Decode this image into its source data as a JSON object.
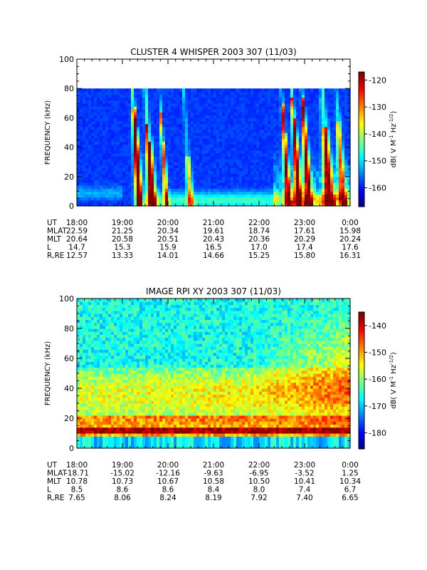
{
  "chart_data": [
    {
      "type": "heatmap",
      "title": "CLUSTER 4 WHISPER 2003 307 (11/03)",
      "ylabel": "FREQUENCY (kHz)",
      "ylim": [
        0,
        100
      ],
      "yticks": [
        "0",
        "20",
        "40",
        "60",
        "80",
        "100"
      ],
      "colorbar_label": "dB( V M",
      "colorbar_ticks": [
        "-120",
        "-130",
        "-140",
        "-150",
        "-160"
      ],
      "colorbar_range": [
        -167,
        -117
      ],
      "xtick_labels": [
        "18:00",
        "19:00",
        "20:00",
        "21:00",
        "22:00",
        "23:00",
        "0:00"
      ],
      "ephemeris": [
        {
          "label": "UT",
          "values": [
            "18:00",
            "19:00",
            "20:00",
            "21:00",
            "22:00",
            "23:00",
            "0:00"
          ]
        },
        {
          "label": "MLAT",
          "values": [
            "22.59",
            "21.25",
            "20.34",
            "19.61",
            "18.74",
            "17.61",
            "15.98"
          ]
        },
        {
          "label": "MLT",
          "values": [
            "20.64",
            "20.58",
            "20.51",
            "20.43",
            "20.36",
            "20.29",
            "20.24"
          ]
        },
        {
          "label": "L",
          "values": [
            "14.7",
            "15.3",
            "15.9",
            "16.5",
            "17.0",
            "17.4",
            "17.6"
          ]
        },
        {
          "label": "R,RE",
          "values": [
            "12.57",
            "13.33",
            "14.01",
            "14.66",
            "15.25",
            "15.80",
            "16.31"
          ]
        }
      ]
    },
    {
      "type": "heatmap",
      "title": "IMAGE RPI XY 2003 307 (11/03)",
      "ylabel": "FREQUENCY (kHz)",
      "ylim": [
        0,
        100
      ],
      "yticks": [
        "0",
        "20",
        "40",
        "60",
        "80",
        "100"
      ],
      "colorbar_label": "dB( V M",
      "colorbar_ticks": [
        "-140",
        "-150",
        "-160",
        "-170",
        "-180"
      ],
      "colorbar_range": [
        -186,
        -135
      ],
      "xtick_labels": [
        "18:00",
        "19:00",
        "20:00",
        "21:00",
        "22:00",
        "23:00",
        "0:00"
      ],
      "ephemeris": [
        {
          "label": "UT",
          "values": [
            "18:00",
            "19:00",
            "20:00",
            "21:00",
            "22:00",
            "23:00",
            "0:00"
          ]
        },
        {
          "label": "MLAT",
          "values": [
            "-18.71",
            "-15.02",
            "-12.16",
            "-9.63",
            "-6.95",
            "-3.52",
            "1.25"
          ]
        },
        {
          "label": "MLT",
          "values": [
            "10.78",
            "10.73",
            "10.67",
            "10.58",
            "10.50",
            "10.41",
            "10.34"
          ]
        },
        {
          "label": "L",
          "values": [
            "8.5",
            "8.6",
            "8.6",
            "8.4",
            "8.0",
            "7.4",
            "6.7"
          ]
        },
        {
          "label": "R,RE",
          "values": [
            "7.65",
            "8.06",
            "8.24",
            "8.19",
            "7.92",
            "7.40",
            "6.65"
          ]
        }
      ]
    }
  ]
}
